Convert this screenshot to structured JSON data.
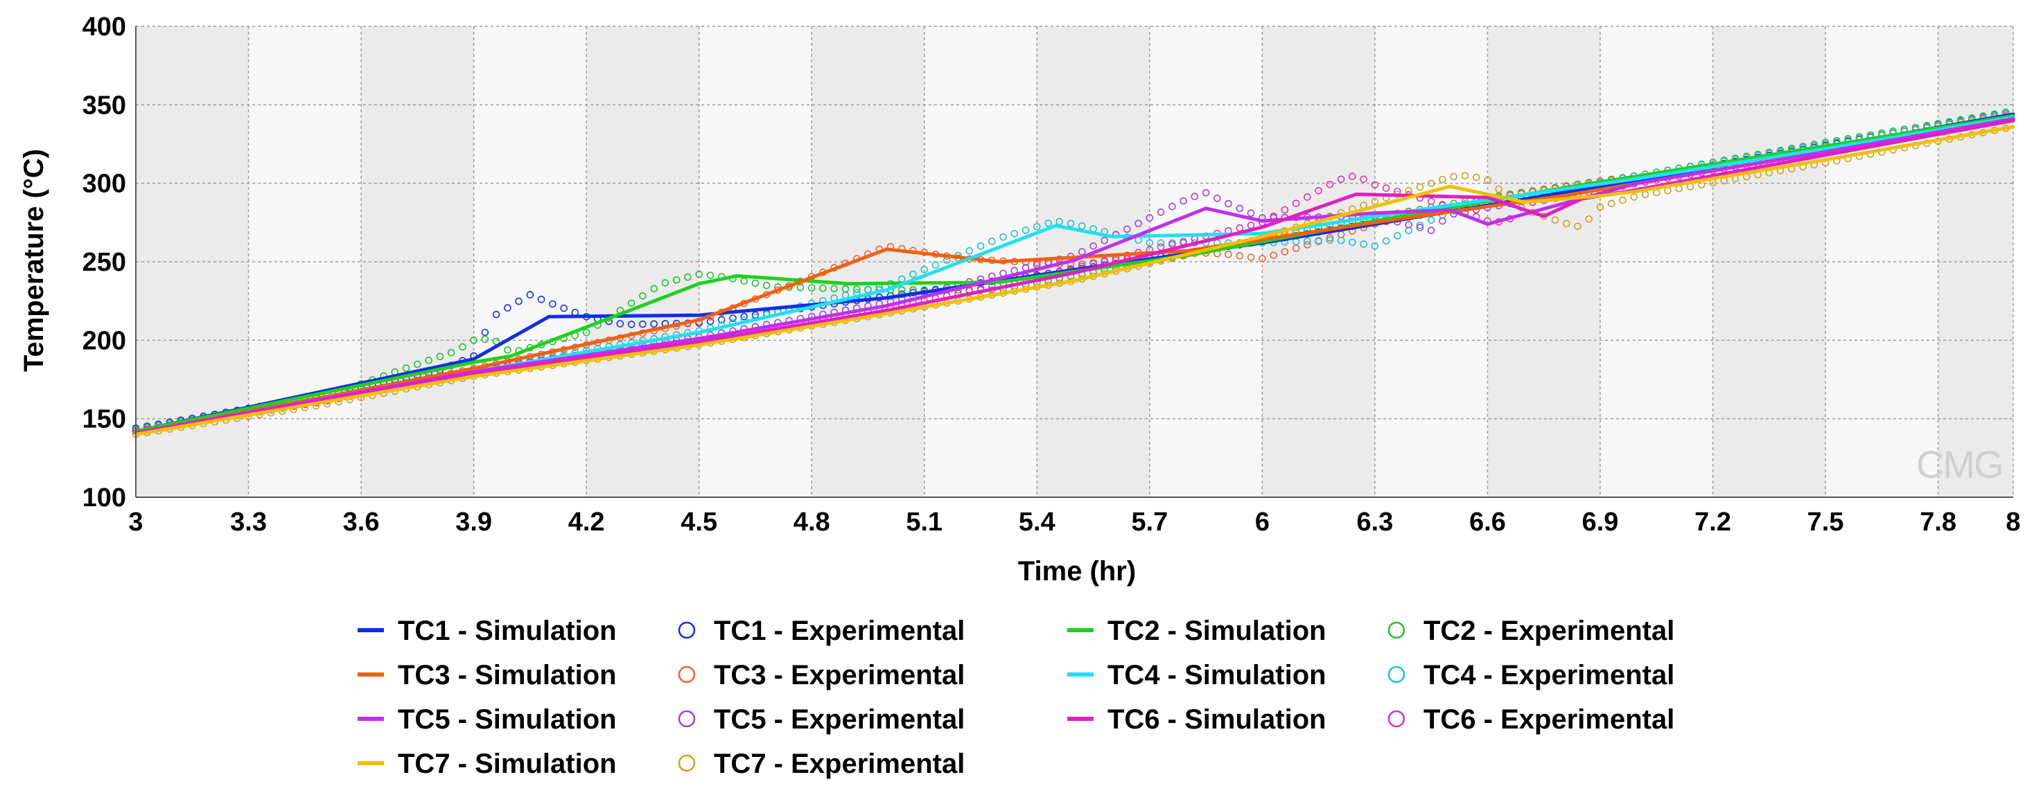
{
  "chart_data": {
    "type": "line",
    "title": "",
    "xlabel": "Time (hr)",
    "ylabel": "Temperature (°C)",
    "xlim": [
      3,
      8
    ],
    "ylim": [
      100,
      400
    ],
    "xticks": [
      "3",
      "3.3",
      "3.6",
      "3.9",
      "4.2",
      "4.5",
      "4.8",
      "5.1",
      "5.4",
      "5.7",
      "6",
      "6.3",
      "6.6",
      "6.9",
      "7.2",
      "7.5",
      "7.8",
      "8"
    ],
    "yticks": [
      "100",
      "150",
      "200",
      "250",
      "300",
      "350",
      "400"
    ],
    "grid": true,
    "watermark": "CMG",
    "legend_position": "bottom",
    "series": [
      {
        "name": "TC1 - Simulation",
        "kind": "line",
        "color": "#1030e0",
        "x": [
          3.0,
          3.9,
          4.1,
          4.5,
          5.0,
          5.5,
          6.0,
          6.5,
          7.0,
          7.5,
          8.0
        ],
        "y": [
          142,
          188,
          215,
          216,
          227,
          245,
          262,
          282,
          302,
          323,
          344
        ]
      },
      {
        "name": "TC1 - Experimental",
        "kind": "markers",
        "color": "#1030e0",
        "x": [
          3.0,
          3.5,
          3.8,
          3.9,
          3.95,
          4.0,
          4.05,
          4.1,
          4.2,
          4.3,
          4.5,
          5.0,
          5.5,
          6.0,
          6.5,
          7.0,
          7.5,
          8.0
        ],
        "y": [
          144,
          165,
          180,
          190,
          215,
          222,
          229,
          224,
          215,
          210,
          211,
          228,
          245,
          263,
          283,
          303,
          324,
          346
        ]
      },
      {
        "name": "TC2 - Simulation",
        "kind": "line",
        "color": "#20d020",
        "x": [
          3.0,
          3.9,
          4.0,
          4.5,
          4.6,
          4.9,
          5.3,
          5.8,
          6.3,
          6.8,
          7.3,
          8.0
        ],
        "y": [
          142,
          186,
          190,
          236,
          241,
          236,
          237,
          254,
          276,
          297,
          316,
          343
        ]
      },
      {
        "name": "TC2 - Experimental",
        "kind": "markers",
        "color": "#20c030",
        "x": [
          3.0,
          3.5,
          3.85,
          3.9,
          3.95,
          4.0,
          4.2,
          4.4,
          4.5,
          4.55,
          4.7,
          5.0,
          5.3,
          5.7,
          6.2,
          6.6,
          7.0,
          7.5,
          8.0
        ],
        "y": [
          143,
          164,
          193,
          200,
          201,
          192,
          205,
          236,
          242,
          241,
          234,
          232,
          232,
          250,
          274,
          291,
          305,
          326,
          346
        ]
      },
      {
        "name": "TC3 - Simulation",
        "kind": "line",
        "color": "#f06010",
        "x": [
          3.0,
          3.9,
          4.5,
          5.0,
          5.3,
          5.8,
          6.3,
          6.8,
          7.3,
          8.0
        ],
        "y": [
          141,
          182,
          213,
          258,
          250,
          257,
          275,
          292,
          312,
          340
        ]
      },
      {
        "name": "TC3 - Experimental",
        "kind": "markers",
        "color": "#f06030",
        "x": [
          3.0,
          3.5,
          3.9,
          4.5,
          4.9,
          5.0,
          5.05,
          5.2,
          5.5,
          5.8,
          5.9,
          6.0,
          6.3,
          6.6,
          7.0,
          7.5,
          8.0
        ],
        "y": [
          142,
          162,
          182,
          212,
          250,
          260,
          258,
          252,
          248,
          256,
          255,
          252,
          274,
          290,
          305,
          325,
          344
        ]
      },
      {
        "name": "TC4 - Simulation",
        "kind": "line",
        "color": "#20e0f0",
        "x": [
          3.0,
          3.9,
          4.5,
          5.0,
          5.45,
          5.6,
          6.0,
          6.5,
          7.0,
          7.5,
          8.0
        ],
        "y": [
          141,
          180,
          205,
          232,
          273,
          266,
          268,
          286,
          303,
          322,
          342
        ]
      },
      {
        "name": "TC4 - Experimental",
        "kind": "markers",
        "color": "#20c0d0",
        "x": [
          3.0,
          3.5,
          3.9,
          4.5,
          5.0,
          5.3,
          5.45,
          5.5,
          5.7,
          6.0,
          6.2,
          6.3,
          6.5,
          7.0,
          7.5,
          8.0
        ],
        "y": [
          142,
          161,
          181,
          206,
          235,
          265,
          276,
          274,
          262,
          262,
          264,
          260,
          282,
          305,
          325,
          345
        ]
      },
      {
        "name": "TC5 - Simulation",
        "kind": "line",
        "color": "#c030e8",
        "x": [
          3.0,
          3.9,
          4.5,
          5.0,
          5.5,
          5.85,
          6.0,
          6.3,
          6.5,
          6.6,
          7.0,
          7.5,
          8.0
        ],
        "y": [
          141,
          180,
          201,
          222,
          251,
          284,
          276,
          281,
          283,
          274,
          300,
          320,
          341
        ]
      },
      {
        "name": "TC5 - Experimental",
        "kind": "markers",
        "color": "#a040e0",
        "x": [
          3.0,
          3.5,
          3.9,
          4.5,
          5.0,
          5.5,
          5.8,
          5.85,
          5.9,
          6.0,
          6.3,
          6.45,
          6.5,
          7.0,
          7.5,
          8.0
        ],
        "y": [
          142,
          161,
          181,
          202,
          224,
          254,
          290,
          294,
          288,
          278,
          279,
          270,
          280,
          302,
          322,
          343
        ]
      },
      {
        "name": "TC6 - Simulation",
        "kind": "line",
        "color": "#e020c0",
        "x": [
          3.0,
          3.9,
          4.5,
          5.0,
          5.5,
          6.0,
          6.25,
          6.6,
          6.75,
          6.85,
          7.0,
          7.5,
          8.0
        ],
        "y": [
          141,
          179,
          199,
          219,
          243,
          272,
          293,
          291,
          279,
          290,
          296,
          318,
          340
        ]
      },
      {
        "name": "TC6 - Experimental",
        "kind": "markers",
        "color": "#e030b0",
        "x": [
          3.0,
          3.5,
          3.9,
          4.5,
          5.0,
          5.5,
          6.0,
          6.2,
          6.25,
          6.3,
          6.5,
          6.6,
          6.65,
          6.7,
          7.0,
          7.5,
          8.0
        ],
        "y": [
          142,
          161,
          180,
          200,
          220,
          246,
          275,
          302,
          305,
          299,
          285,
          276,
          275,
          287,
          300,
          320,
          341
        ]
      },
      {
        "name": "TC7 - Simulation",
        "kind": "line",
        "color": "#f0c000",
        "x": [
          3.0,
          3.9,
          4.5,
          5.0,
          5.5,
          6.0,
          6.5,
          6.7,
          6.9,
          7.0,
          7.5,
          8.0
        ],
        "y": [
          140,
          177,
          197,
          217,
          238,
          266,
          298,
          288,
          292,
          295,
          315,
          336
        ]
      },
      {
        "name": "TC7 - Experimental",
        "kind": "markers",
        "color": "#d0a020",
        "x": [
          3.0,
          3.5,
          3.9,
          4.5,
          5.0,
          5.5,
          6.0,
          6.45,
          6.5,
          6.55,
          6.6,
          6.7,
          6.8,
          6.85,
          6.9,
          7.0,
          7.5,
          8.0
        ],
        "y": [
          140,
          159,
          177,
          197,
          217,
          238,
          265,
          300,
          304,
          305,
          302,
          283,
          275,
          272,
          285,
          292,
          313,
          336
        ]
      }
    ]
  }
}
